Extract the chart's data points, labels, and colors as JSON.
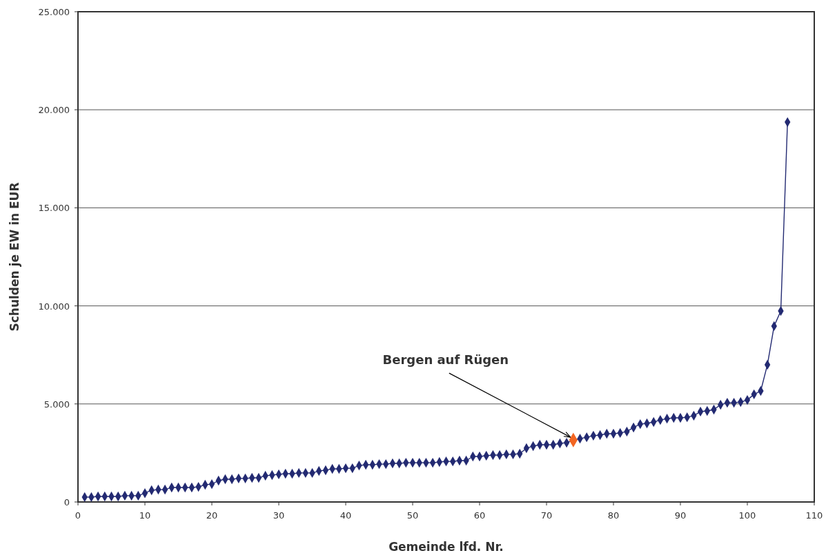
{
  "chart_data": {
    "type": "line",
    "xlabel": "Gemeinde lfd. Nr.",
    "ylabel": "Schulden je EW in EUR",
    "xlim": [
      0,
      110
    ],
    "xticks": [
      0,
      10,
      20,
      30,
      40,
      50,
      60,
      70,
      80,
      90,
      100,
      110
    ],
    "ylim": [
      0,
      25000
    ],
    "yticks": [
      {
        "value": 0,
        "label": "0"
      },
      {
        "value": 5000,
        "label": "5.000"
      },
      {
        "value": 10000,
        "label": "10.000"
      },
      {
        "value": 15000,
        "label": "15.000"
      },
      {
        "value": 20000,
        "label": "20.000"
      },
      {
        "value": 25000,
        "label": "25.000"
      }
    ],
    "grid": "y",
    "marker": "diamond",
    "line_style": "solid",
    "x": [
      1,
      2,
      3,
      4,
      5,
      6,
      7,
      8,
      9,
      10,
      11,
      12,
      13,
      14,
      15,
      16,
      17,
      18,
      19,
      20,
      21,
      22,
      23,
      24,
      25,
      26,
      27,
      28,
      29,
      30,
      31,
      32,
      33,
      34,
      35,
      36,
      37,
      38,
      39,
      40,
      41,
      42,
      43,
      44,
      45,
      46,
      47,
      48,
      49,
      50,
      51,
      52,
      53,
      54,
      55,
      56,
      57,
      58,
      59,
      60,
      61,
      62,
      63,
      64,
      65,
      66,
      67,
      68,
      69,
      70,
      71,
      72,
      73,
      74,
      75,
      76,
      77,
      78,
      79,
      80,
      81,
      82,
      83,
      84,
      85,
      86,
      87,
      88,
      89,
      90,
      91,
      92,
      93,
      94,
      95,
      96,
      97,
      98,
      99,
      100,
      101,
      102,
      103,
      104,
      105,
      106
    ],
    "series": [
      {
        "color": "#232a72",
        "values": [
          250,
          250,
          280,
          280,
          280,
          280,
          320,
          320,
          320,
          450,
          600,
          630,
          630,
          740,
          740,
          740,
          740,
          770,
          880,
          910,
          1090,
          1160,
          1160,
          1200,
          1200,
          1230,
          1230,
          1340,
          1370,
          1410,
          1440,
          1440,
          1480,
          1480,
          1480,
          1580,
          1620,
          1690,
          1690,
          1720,
          1720,
          1860,
          1900,
          1900,
          1930,
          1930,
          1970,
          1970,
          2000,
          2000,
          2000,
          2000,
          2000,
          2040,
          2070,
          2070,
          2110,
          2110,
          2320,
          2320,
          2360,
          2390,
          2390,
          2430,
          2430,
          2460,
          2740,
          2850,
          2920,
          2920,
          2920,
          2990,
          3020,
          3160,
          3230,
          3300,
          3380,
          3410,
          3480,
          3480,
          3520,
          3590,
          3800,
          3970,
          4010,
          4080,
          4180,
          4250,
          4290,
          4290,
          4320,
          4400,
          4610,
          4640,
          4710,
          4960,
          5060,
          5060,
          5100,
          5200,
          5490,
          5660,
          7000,
          8970,
          9740,
          19370
        ]
      },
      {
        "type": "scatter",
        "color": "#f26522",
        "x": [
          74
        ],
        "values": [
          3160
        ]
      }
    ],
    "annotations": [
      {
        "text": "Bergen auf Rügen",
        "x": 74,
        "y": 3160
      }
    ]
  }
}
